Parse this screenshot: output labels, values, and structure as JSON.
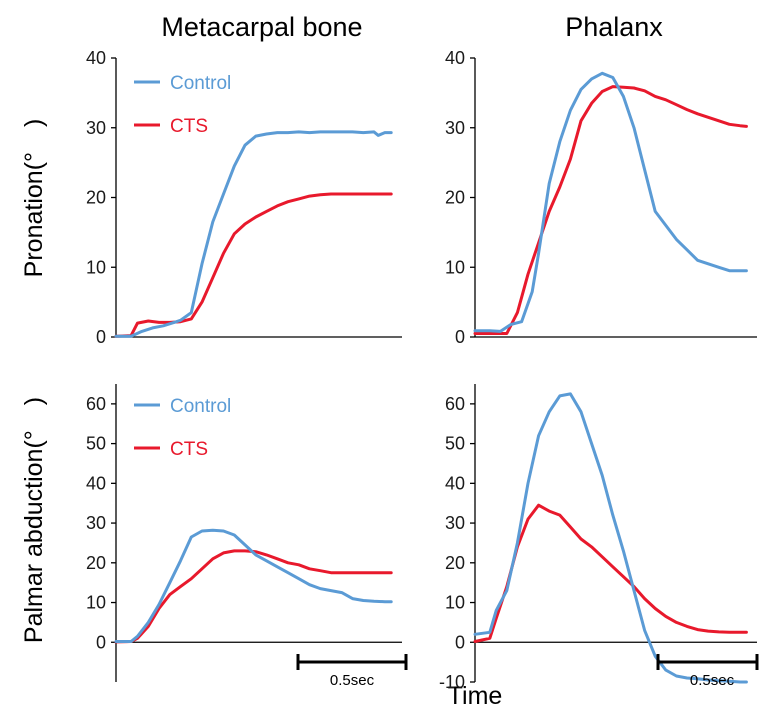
{
  "figure": {
    "col_titles": [
      "Metacarpal bone",
      "Phalanx"
    ],
    "row_labels": [
      "Pronation(°　)",
      "Palmar abduction(°　)"
    ],
    "xlabel": "Time",
    "scale_bar": "0.5sec",
    "colors": {
      "control": "#5b9bd5",
      "cts": "#e8192c",
      "axis": "#000000"
    }
  },
  "chart_data": [
    {
      "type": "line",
      "title": "Metacarpal bone",
      "ylabel": "Pronation(°　)",
      "xlabel": "",
      "ylim": [
        0,
        40
      ],
      "yticks": [
        0,
        10,
        20,
        30,
        40
      ],
      "xlim": [
        0,
        1.33
      ],
      "legend": "top-left",
      "series": [
        {
          "name": "Control",
          "color": "#5b9bd5",
          "x": [
            0,
            0.07,
            0.12,
            0.17,
            0.22,
            0.27,
            0.3,
            0.35,
            0.4,
            0.45,
            0.5,
            0.55,
            0.6,
            0.65,
            0.7,
            0.75,
            0.8,
            0.85,
            0.9,
            0.95,
            1.0,
            1.05,
            1.1,
            1.15,
            1.2,
            1.22,
            1.25,
            1.28
          ],
          "y": [
            0.1,
            0.1,
            0.8,
            1.3,
            1.6,
            2.1,
            2.4,
            3.5,
            10.5,
            16.5,
            20.5,
            24.5,
            27.5,
            28.8,
            29.1,
            29.3,
            29.3,
            29.4,
            29.3,
            29.4,
            29.4,
            29.4,
            29.4,
            29.3,
            29.4,
            28.9,
            29.3,
            29.3
          ]
        },
        {
          "name": "CTS",
          "color": "#e8192c",
          "x": [
            0,
            0.07,
            0.1,
            0.15,
            0.2,
            0.25,
            0.3,
            0.35,
            0.4,
            0.45,
            0.5,
            0.55,
            0.6,
            0.65,
            0.7,
            0.75,
            0.8,
            0.85,
            0.9,
            0.95,
            1.0,
            1.05,
            1.1,
            1.15,
            1.2,
            1.25,
            1.28
          ],
          "y": [
            0.1,
            0.2,
            2.0,
            2.3,
            2.1,
            2.1,
            2.2,
            2.6,
            5.0,
            8.5,
            12.0,
            14.8,
            16.2,
            17.2,
            18.0,
            18.8,
            19.4,
            19.8,
            20.2,
            20.4,
            20.5,
            20.5,
            20.5,
            20.5,
            20.5,
            20.5,
            20.5
          ]
        }
      ]
    },
    {
      "type": "line",
      "title": "Phalanx",
      "ylabel": "",
      "xlabel": "",
      "ylim": [
        0,
        40
      ],
      "yticks": [
        0,
        10,
        20,
        30,
        40
      ],
      "xlim": [
        0,
        1.33
      ],
      "series": [
        {
          "name": "Control",
          "color": "#5b9bd5",
          "x": [
            0,
            0.07,
            0.12,
            0.17,
            0.22,
            0.27,
            0.3,
            0.35,
            0.4,
            0.45,
            0.5,
            0.55,
            0.6,
            0.65,
            0.7,
            0.75,
            0.8,
            0.85,
            0.9,
            0.95,
            1.0,
            1.05,
            1.1,
            1.15,
            1.2,
            1.25,
            1.28
          ],
          "y": [
            0.9,
            0.9,
            0.8,
            1.8,
            2.2,
            6.5,
            12.0,
            22.0,
            28.0,
            32.5,
            35.5,
            37.0,
            37.8,
            37.2,
            34.5,
            30.0,
            24.0,
            18.0,
            16.0,
            14.0,
            12.5,
            11.0,
            10.5,
            10.0,
            9.5,
            9.5,
            9.5
          ]
        },
        {
          "name": "CTS",
          "color": "#e8192c",
          "x": [
            0,
            0.07,
            0.12,
            0.15,
            0.2,
            0.25,
            0.3,
            0.35,
            0.4,
            0.45,
            0.5,
            0.55,
            0.6,
            0.65,
            0.7,
            0.75,
            0.8,
            0.85,
            0.9,
            0.95,
            1.0,
            1.05,
            1.1,
            1.15,
            1.2,
            1.25,
            1.28
          ],
          "y": [
            0.5,
            0.5,
            0.5,
            0.5,
            3.5,
            9.0,
            13.5,
            18.0,
            21.5,
            25.5,
            31.0,
            33.5,
            35.2,
            35.9,
            35.8,
            35.7,
            35.3,
            34.5,
            34.0,
            33.3,
            32.6,
            32.0,
            31.5,
            31.0,
            30.5,
            30.3,
            30.2
          ]
        }
      ]
    },
    {
      "type": "line",
      "title": "",
      "ylabel": "Palmar abduction(°　)",
      "xlabel": "",
      "ylim": [
        -10,
        65
      ],
      "yticks": [
        0,
        10,
        20,
        30,
        40,
        50,
        60
      ],
      "xlim": [
        0,
        1.33
      ],
      "legend": "top-left",
      "series": [
        {
          "name": "Control",
          "color": "#5b9bd5",
          "x": [
            0,
            0.07,
            0.1,
            0.15,
            0.2,
            0.25,
            0.3,
            0.35,
            0.4,
            0.45,
            0.5,
            0.55,
            0.6,
            0.65,
            0.7,
            0.75,
            0.8,
            0.85,
            0.9,
            0.95,
            1.0,
            1.05,
            1.1,
            1.15,
            1.2,
            1.25,
            1.28
          ],
          "y": [
            0.2,
            0.2,
            1.5,
            5.0,
            9.5,
            15.0,
            20.5,
            26.5,
            28.0,
            28.2,
            28.0,
            27.0,
            24.5,
            22.0,
            20.5,
            19.0,
            17.5,
            16.0,
            14.5,
            13.5,
            13.0,
            12.5,
            11.0,
            10.5,
            10.3,
            10.2,
            10.2
          ]
        },
        {
          "name": "CTS",
          "color": "#e8192c",
          "x": [
            0,
            0.07,
            0.1,
            0.15,
            0.2,
            0.25,
            0.3,
            0.35,
            0.4,
            0.45,
            0.5,
            0.55,
            0.6,
            0.65,
            0.7,
            0.75,
            0.8,
            0.85,
            0.9,
            0.95,
            1.0,
            1.05,
            1.1,
            1.15,
            1.2,
            1.25,
            1.28
          ],
          "y": [
            0.1,
            0.2,
            1.0,
            4.0,
            8.5,
            12.0,
            14.0,
            16.0,
            18.5,
            21.0,
            22.5,
            23.0,
            23.0,
            22.8,
            22.0,
            21.0,
            20.0,
            19.5,
            18.5,
            18.0,
            17.5,
            17.5,
            17.5,
            17.5,
            17.5,
            17.5,
            17.5
          ]
        }
      ]
    },
    {
      "type": "line",
      "title": "",
      "ylabel": "",
      "xlabel": "",
      "ylim": [
        -10,
        65
      ],
      "yticks": [
        -10,
        0,
        10,
        20,
        30,
        40,
        50,
        60
      ],
      "xlim": [
        0,
        1.33
      ],
      "series": [
        {
          "name": "Control",
          "color": "#5b9bd5",
          "x": [
            0,
            0.07,
            0.1,
            0.15,
            0.2,
            0.25,
            0.3,
            0.35,
            0.4,
            0.45,
            0.5,
            0.55,
            0.6,
            0.65,
            0.7,
            0.75,
            0.8,
            0.85,
            0.9,
            0.95,
            1.0,
            1.05,
            1.1,
            1.15,
            1.2,
            1.25,
            1.28
          ],
          "y": [
            2.0,
            2.5,
            8.0,
            13.0,
            25.0,
            40.0,
            52.0,
            58.0,
            62.0,
            62.5,
            58.0,
            50.0,
            42.0,
            32.0,
            23.0,
            13.0,
            3.0,
            -3.5,
            -7.0,
            -8.5,
            -9.0,
            -9.2,
            -9.5,
            -9.7,
            -9.8,
            -10.0,
            -10.0
          ]
        },
        {
          "name": "CTS",
          "color": "#e8192c",
          "x": [
            0,
            0.07,
            0.1,
            0.15,
            0.2,
            0.25,
            0.3,
            0.35,
            0.4,
            0.45,
            0.5,
            0.55,
            0.6,
            0.65,
            0.7,
            0.75,
            0.8,
            0.85,
            0.9,
            0.95,
            1.0,
            1.05,
            1.1,
            1.15,
            1.2,
            1.25,
            1.28
          ],
          "y": [
            0.2,
            1.0,
            6.0,
            14.0,
            24.0,
            31.0,
            34.5,
            33.0,
            32.0,
            29.0,
            26.0,
            24.0,
            21.5,
            19.0,
            16.5,
            14.0,
            11.0,
            8.5,
            6.5,
            5.0,
            4.0,
            3.2,
            2.8,
            2.6,
            2.5,
            2.5,
            2.5
          ]
        }
      ]
    }
  ]
}
